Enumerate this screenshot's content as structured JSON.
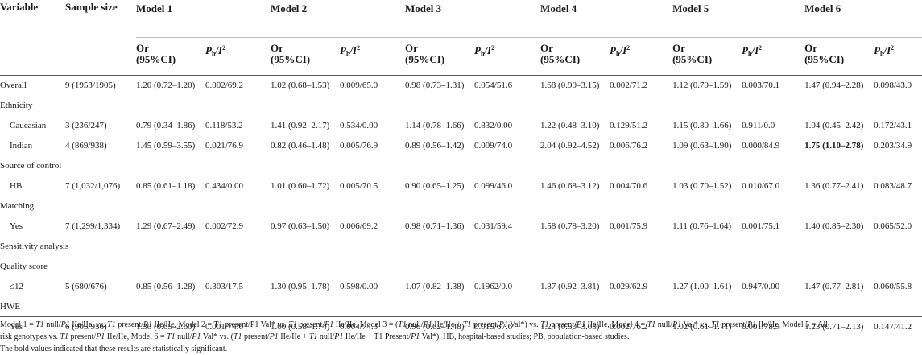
{
  "header": {
    "variable": "Variable",
    "sample_size": "Sample size",
    "models": [
      "Model 1",
      "Model 2",
      "Model 3",
      "Model 4",
      "Model 5",
      "Model 6"
    ],
    "or_label": "Or",
    "ci_label": "(95%CI)",
    "ph_main": "P",
    "ph_sub": "h",
    "ph_mid": "/I",
    "ph_sup": "2"
  },
  "rows": [
    {
      "type": "data",
      "label": "Overall",
      "n": "9 (1953/1905)",
      "cells": [
        "1.20 (0.72–1.20)",
        "0.002/69.2",
        "1.02 (0.68–1.53)",
        "0.009/65.0",
        "0.98 (0.73–1.31)",
        "0.054/51.6",
        "1.68 (0.90–3.15)",
        "0.002/71.2",
        "1.12 (0.79–1.59)",
        "0.003/70.1",
        "1.47 (0.94–2.28)",
        "0.098/43.9"
      ]
    },
    {
      "type": "group",
      "label": "Ethnicity"
    },
    {
      "type": "data",
      "indent": true,
      "label": "Caucasian",
      "n": "3 (236/247)",
      "cells": [
        "0.79 (0.34–1.86)",
        "0.118/53.2",
        "1.41 (0.92–2.17)",
        "0.534/0.00",
        "1.14 (0.78–1.66)",
        "0.832/0.00",
        "1.22 (0.48–3.10)",
        "0.129/51.2",
        "1.15 (0.80–1.66)",
        "0.911/0.0",
        "1.04 (0.45–2.42)",
        "0.172/43.1"
      ]
    },
    {
      "type": "data",
      "indent": true,
      "label": "Indian",
      "n": "4 (869/938)",
      "cells": [
        "1.45 (0.59–3.55)",
        "0.021/76.9",
        "0.82 (0.46–1.48)",
        "0.005/76.9",
        "0.89 (0.56–1.42)",
        "0.009/74.0",
        "2.04 (0.92–4.52)",
        "0.006/76.2",
        "1.09 (0.63–1.90)",
        "0.000/84.9",
        "1.75 (1.10–2.78)",
        "0.203/34.9"
      ],
      "bold": [
        10
      ]
    },
    {
      "type": "group",
      "label": "Source of control"
    },
    {
      "type": "data",
      "indent": true,
      "label": "HB",
      "n": "7 (1,032/1,076)",
      "cells": [
        "0.85 (0.61–1.18)",
        "0.434/0.00",
        "1.01 (0.60–1.72)",
        "0.005/70.5",
        "0.90 (0.65–1.25)",
        "0.099/46.0",
        "1.46 (0.68–3.12)",
        "0.004/70.6",
        "1.03 (0.70–1.52)",
        "0.010/67.0",
        "1.36 (0.77–2.41)",
        "0.083/48.7"
      ]
    },
    {
      "type": "group",
      "label": "Matching"
    },
    {
      "type": "data",
      "indent": true,
      "label": "Yes",
      "n": "7 (1,299/1,334)",
      "cells": [
        "1.29 (0.67–2.49)",
        "0.002/72.9",
        "0.97 (0.63–1.50)",
        "0.006/69.2",
        "0.98 (0.71–1.36)",
        "0.031/59.4",
        "1.58 (0.78–3.20)",
        "0.001/75.9",
        "1.11 (0.76–1.64)",
        "0.001/75.1",
        "1.40 (0.85–2.30)",
        "0.065/52.0"
      ]
    },
    {
      "type": "group",
      "label": "Sensitivity analysis"
    },
    {
      "type": "group",
      "label": "Quality score"
    },
    {
      "type": "data",
      "indent": true,
      "label": "≤12",
      "n": "5 (680/676)",
      "cells": [
        "0.85 (0.56–1.28)",
        "0.303/17.5",
        "1.30 (0.95–1.78)",
        "0.598/0.00",
        "1.07 (0.82–1.38)",
        "0.1962/0.0",
        "1.87 (0.92–3.81)",
        "0.029/62.9",
        "1.27 (1.00–1.61)",
        "0.947/0.00",
        "1.47 (0.77–2.81)",
        "0.060/55.8"
      ]
    },
    {
      "type": "group",
      "label": "HWE"
    },
    {
      "type": "data",
      "indent": true,
      "label": "Yes",
      "n": "6 (905/956)",
      "cells": [
        "1.30 (0.65–2.60)",
        "0.001/74.6",
        "1.00 (0.58–1.74)",
        "0.004/74.3",
        "0.96 (0.62–1.48)",
        "0.015/67.6",
        "1.24 (0.50–3.03)",
        "0.002/76.2",
        "1.02 (0.61–1.71)",
        "0.001/78.9",
        "1.23 (0.71–2.13)",
        "0.147/41.2"
      ]
    }
  ],
  "footnote": {
    "line1": [
      {
        "t": "Model 1 = "
      },
      {
        "t": "T1",
        "i": true
      },
      {
        "t": " null/"
      },
      {
        "t": "P1",
        "i": true
      },
      {
        "t": " IIe/IIe, vs. "
      },
      {
        "t": "T1",
        "i": true
      },
      {
        "t": " present/"
      },
      {
        "t": "P1",
        "i": true
      },
      {
        "t": " IIe/IIe, Model 2 = T1 present/P1 Val* vs. "
      },
      {
        "t": "T1",
        "i": true
      },
      {
        "t": " present/"
      },
      {
        "t": "P1",
        "i": true
      },
      {
        "t": " IIe/IIe, Model 3 = ("
      },
      {
        "t": "T1",
        "i": true
      },
      {
        "t": " null/"
      },
      {
        "t": "P1",
        "i": true
      },
      {
        "t": " IIe/IIe + "
      },
      {
        "t": "T1",
        "i": true
      },
      {
        "t": " present/"
      },
      {
        "t": "P1",
        "i": true
      },
      {
        "t": " Val*) vs. "
      },
      {
        "t": "T1",
        "i": true
      },
      {
        "t": " present/"
      },
      {
        "t": "P1",
        "i": true
      },
      {
        "t": " IIe/IIe, Model 4 = "
      },
      {
        "t": "T1",
        "i": true
      },
      {
        "t": " null/"
      },
      {
        "t": "P1",
        "i": true
      },
      {
        "t": " Val* vs. "
      },
      {
        "t": "T1",
        "i": true
      },
      {
        "t": " present/"
      },
      {
        "t": "P1",
        "i": true
      },
      {
        "t": " IIe/IIe, Model 5 = All"
      }
    ],
    "line2": [
      {
        "t": "risk genotypes vs. "
      },
      {
        "t": "T1",
        "i": true
      },
      {
        "t": " present/"
      },
      {
        "t": "P1",
        "i": true
      },
      {
        "t": " IIe/IIe, Model 6 = "
      },
      {
        "t": "T1",
        "i": true
      },
      {
        "t": " null/"
      },
      {
        "t": "P1",
        "i": true
      },
      {
        "t": " Val* vs. ("
      },
      {
        "t": "T1",
        "i": true
      },
      {
        "t": " present/"
      },
      {
        "t": "P1",
        "i": true
      },
      {
        "t": " IIe/IIe + "
      },
      {
        "t": "T1",
        "i": true
      },
      {
        "t": " null/"
      },
      {
        "t": "P1",
        "i": true
      },
      {
        "t": " IIe/IIe + T1 Present/"
      },
      {
        "t": "P1",
        "i": true
      },
      {
        "t": " Val*), HB, hospital-based studies; PB, population-based studies."
      }
    ],
    "line3": "The bold values indicated that these results are statistically significant."
  }
}
